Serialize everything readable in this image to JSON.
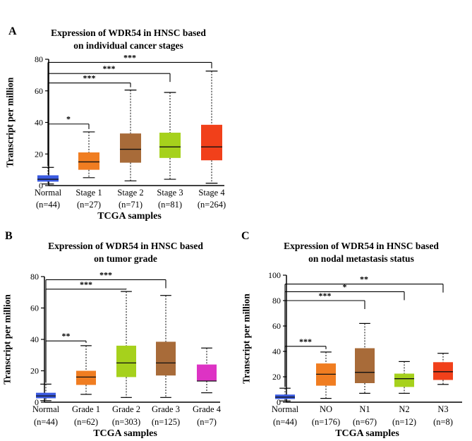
{
  "chart_data": [
    {
      "type": "box",
      "panel_label": "A",
      "title": [
        "Expression of WDR54 in HNSC based",
        "on individual cancer stages"
      ],
      "ylabel": "Transcript per million",
      "xlabel": "TCGA samples",
      "ylim": [
        0,
        80
      ],
      "yticks": [
        0,
        20,
        40,
        60,
        80
      ],
      "categories": [
        {
          "label": "Normal",
          "n": "(n=44)",
          "color": "#3a5ae0",
          "min": 1,
          "q1": 2.5,
          "median": 4,
          "q3": 6.5,
          "max": 11.5
        },
        {
          "label": "Stage 1",
          "n": "(n=27)",
          "color": "#f07d21",
          "min": 5,
          "q1": 10,
          "median": 15,
          "q3": 21,
          "max": 34
        },
        {
          "label": "Stage 2",
          "n": "(n=71)",
          "color": "#a86b39",
          "min": 3,
          "q1": 14.5,
          "median": 23,
          "q3": 33,
          "max": 60.5
        },
        {
          "label": "Stage 3",
          "n": "(n=81)",
          "color": "#a6d11c",
          "min": 4,
          "q1": 17.5,
          "median": 24.5,
          "q3": 33.5,
          "max": 59
        },
        {
          "label": "Stage 4",
          "n": "(n=264)",
          "color": "#f1401a",
          "min": 1.5,
          "q1": 16,
          "median": 24.5,
          "q3": 38.5,
          "max": 72.5
        }
      ],
      "comparisons": [
        {
          "to": 1,
          "label": "*",
          "y": 39
        },
        {
          "to": 2,
          "label": "***",
          "y": 65
        },
        {
          "to": 3,
          "label": "***",
          "y": 71
        },
        {
          "to": 4,
          "label": "***",
          "y": 78
        }
      ]
    },
    {
      "type": "box",
      "panel_label": "B",
      "title": [
        "Expression of WDR54 in HNSC based",
        "on tumor grade"
      ],
      "ylabel": "Transcript per million",
      "xlabel": "TCGA samples",
      "ylim": [
        0,
        80
      ],
      "yticks": [
        0,
        20,
        40,
        60,
        80
      ],
      "categories": [
        {
          "label": "Normal",
          "n": "(n=44)",
          "color": "#3a5ae0",
          "min": 1,
          "q1": 2.5,
          "median": 4,
          "q3": 6,
          "max": 11.5
        },
        {
          "label": "Grade 1",
          "n": "(n=62)",
          "color": "#f07d21",
          "min": 5,
          "q1": 11,
          "median": 16,
          "q3": 20,
          "max": 36
        },
        {
          "label": "Grade 2",
          "n": "(n=303)",
          "color": "#a6d11c",
          "min": 3,
          "q1": 16,
          "median": 25,
          "q3": 36,
          "max": 70.5
        },
        {
          "label": "Grade 3",
          "n": "(n=125)",
          "color": "#a86b39",
          "min": 3,
          "q1": 17,
          "median": 25,
          "q3": 38.5,
          "max": 68
        },
        {
          "label": "Grade 4",
          "n": "(n=7)",
          "color": "#dd33c4",
          "min": 6,
          "q1": 13.5,
          "median": 13.5,
          "q3": 24,
          "max": 34.5
        }
      ],
      "comparisons": [
        {
          "to": 1,
          "label": "**",
          "y": 39
        },
        {
          "to": 2,
          "label": "***",
          "y": 72
        },
        {
          "to": 3,
          "label": "***",
          "y": 78
        }
      ]
    },
    {
      "type": "box",
      "panel_label": "C",
      "title": [
        "Expression of WDR54 in HNSC based",
        "on nodal metastasis status"
      ],
      "ylabel": "Transcript per million",
      "xlabel": "TCGA samples",
      "ylim": [
        0,
        100
      ],
      "yticks": [
        0,
        20,
        40,
        60,
        80,
        100
      ],
      "categories": [
        {
          "label": "Normal",
          "n": "(n=44)",
          "color": "#3a5ae0",
          "min": 1,
          "q1": 2.5,
          "median": 4,
          "q3": 6,
          "max": 11
        },
        {
          "label": "NO",
          "n": "(n=176)",
          "color": "#f07d21",
          "min": 3,
          "q1": 13,
          "median": 22,
          "q3": 30.5,
          "max": 39.5
        },
        {
          "label": "N1",
          "n": "(n=67)",
          "color": "#a86b39",
          "min": 7,
          "q1": 15,
          "median": 23.5,
          "q3": 42.5,
          "max": 62
        },
        {
          "label": "N2",
          "n": "(n=12)",
          "color": "#a6d11c",
          "min": 7,
          "q1": 12,
          "median": 18.5,
          "q3": 22.5,
          "max": 32
        },
        {
          "label": "N3",
          "n": "(n=8)",
          "color": "#f1401a",
          "min": 14,
          "q1": 17.5,
          "median": 24,
          "q3": 31.5,
          "max": 38.5
        }
      ],
      "comparisons": [
        {
          "to": 1,
          "label": "***",
          "y": 44
        },
        {
          "to": 2,
          "label": "***",
          "y": 80
        },
        {
          "to": 3,
          "label": "*",
          "y": 87
        },
        {
          "to": 4,
          "label": "**",
          "y": 93
        }
      ]
    }
  ]
}
